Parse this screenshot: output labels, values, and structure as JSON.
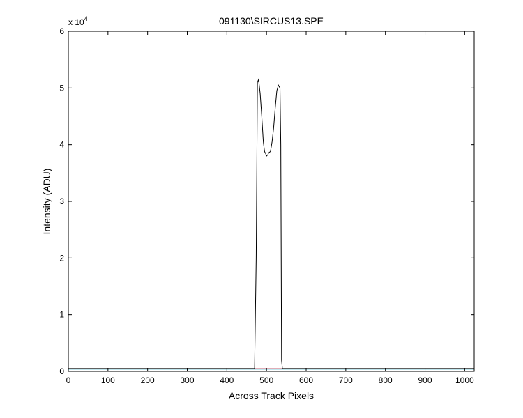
{
  "chart_data": {
    "type": "line",
    "title": "091130\\SIRCUS13.SPE",
    "xlabel": "Across Track Pixels",
    "ylabel": "Intensity (ADU)",
    "xlim": [
      0,
      1024
    ],
    "ylim": [
      0,
      60000
    ],
    "x_ticks": [
      0,
      100,
      200,
      300,
      400,
      500,
      600,
      700,
      800,
      900,
      1000
    ],
    "y_ticks": [
      0,
      1,
      2,
      3,
      4,
      5,
      6
    ],
    "y_tick_labels": [
      "0",
      "1",
      "2",
      "3",
      "4",
      "5",
      "6"
    ],
    "y_exponent_label": "x 10",
    "y_exponent_power": "4",
    "grid": false,
    "series": [
      {
        "color": "#000000",
        "x": [
          0,
          470,
          474,
          477,
          480,
          484,
          488,
          492,
          495,
          498,
          500,
          503,
          506,
          510,
          514,
          518,
          522,
          526,
          530,
          534,
          536,
          538,
          540,
          545,
          1024
        ],
        "y": [
          500,
          500,
          20000,
          51000,
          51500,
          49000,
          45000,
          40500,
          38800,
          38400,
          38000,
          38200,
          38600,
          38800,
          40500,
          43000,
          46500,
          49500,
          50500,
          50000,
          40000,
          2000,
          500,
          500,
          500
        ]
      },
      {
        "color": "#1f3fbf",
        "x": [
          0,
          1024
        ],
        "y": [
          450,
          450
        ]
      },
      {
        "color": "#00a0c0",
        "x": [
          0,
          1024
        ],
        "y": [
          400,
          400
        ]
      },
      {
        "color": "#c03040",
        "x": [
          0,
          1024
        ],
        "y": [
          480,
          480
        ]
      }
    ]
  }
}
